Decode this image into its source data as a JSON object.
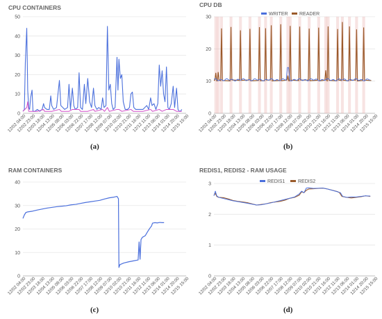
{
  "captions": [
    "(a)",
    "(b)",
    "(c)",
    "(d)"
  ],
  "x_ticks": [
    "12/02 04:00",
    "12/02 23:00",
    "12/03 18:00",
    "12/04 13:00",
    "12/05 08:00",
    "12/06 03:00",
    "12/06 22:00",
    "12/07 17:00",
    "12/08 12:00",
    "12/09 07:00",
    "12/10 02:00",
    "12/10 21:00",
    "12/11 16:00",
    "12/12 11:00",
    "12/13 06:00",
    "12/14 01:00",
    "12/14 20:00",
    "12/15 15:00"
  ],
  "colors": {
    "blue": "#4a6fdc",
    "brown": "#9a5a2a",
    "magenta": "#d04fc8",
    "pink": "#e7b0ad",
    "grid": "#e6e6e6",
    "tick": "#555555"
  },
  "chart_data": [
    {
      "id": "cpu-containers",
      "type": "line",
      "title": "CPU CONTAINERS",
      "ylim": [
        0,
        50
      ],
      "yticks": [
        0,
        10,
        20,
        30,
        40,
        50
      ],
      "series": [
        {
          "name": "",
          "color": "#4a6fdc",
          "width": 1.1,
          "points": [
            [
              0,
              1
            ],
            [
              0.3,
              2
            ],
            [
              0.5,
              26
            ],
            [
              0.8,
              44
            ],
            [
              1.0,
              12
            ],
            [
              1.2,
              3
            ],
            [
              1.4,
              2
            ],
            [
              1.6,
              8
            ],
            [
              1.9,
              12
            ],
            [
              2.1,
              1
            ],
            [
              2.5,
              1
            ],
            [
              3.0,
              2
            ],
            [
              3.5,
              1
            ],
            [
              4.0,
              2
            ],
            [
              4.3,
              5
            ],
            [
              4.5,
              3
            ],
            [
              5.0,
              2
            ],
            [
              5.5,
              2
            ],
            [
              5.8,
              9
            ],
            [
              6.0,
              4
            ],
            [
              6.4,
              2
            ],
            [
              7.0,
              3
            ],
            [
              7.3,
              10
            ],
            [
              7.6,
              17
            ],
            [
              7.9,
              4
            ],
            [
              8.3,
              3
            ],
            [
              8.7,
              2
            ],
            [
              9.3,
              3
            ],
            [
              9.6,
              15
            ],
            [
              9.9,
              2
            ],
            [
              10.3,
              13
            ],
            [
              10.6,
              4
            ],
            [
              10.9,
              2
            ],
            [
              11.4,
              3
            ],
            [
              11.7,
              21
            ],
            [
              12.0,
              3
            ],
            [
              12.4,
              2
            ],
            [
              12.8,
              15
            ],
            [
              13.1,
              5
            ],
            [
              13.5,
              18
            ],
            [
              13.9,
              6
            ],
            [
              14.3,
              3
            ],
            [
              14.7,
              13
            ],
            [
              15.0,
              4
            ],
            [
              15.4,
              2
            ],
            [
              15.8,
              3
            ],
            [
              16.3,
              2
            ],
            [
              16.6,
              8
            ],
            [
              16.9,
              3
            ],
            [
              17.3,
              4
            ],
            [
              17.6,
              45
            ],
            [
              17.9,
              12
            ],
            [
              18.2,
              15
            ],
            [
              18.5,
              5
            ],
            [
              18.8,
              2
            ],
            [
              19.2,
              3
            ],
            [
              19.6,
              29
            ],
            [
              19.8,
              12
            ],
            [
              20.0,
              28
            ],
            [
              20.3,
              18
            ],
            [
              20.6,
              20
            ],
            [
              20.9,
              6
            ],
            [
              21.3,
              2
            ],
            [
              21.8,
              2
            ],
            [
              22.2,
              3
            ],
            [
              22.5,
              10
            ],
            [
              22.8,
              11
            ],
            [
              23.1,
              3
            ],
            [
              23.5,
              2
            ],
            [
              24.0,
              2
            ],
            [
              24.5,
              2
            ],
            [
              25.0,
              2
            ],
            [
              25.4,
              3
            ],
            [
              25.8,
              4
            ],
            [
              26.2,
              2
            ],
            [
              26.6,
              8
            ],
            [
              26.9,
              4
            ],
            [
              27.3,
              5
            ],
            [
              27.7,
              2
            ],
            [
              28.1,
              5
            ],
            [
              28.4,
              25
            ],
            [
              28.7,
              14
            ],
            [
              29.0,
              22
            ],
            [
              29.3,
              10
            ],
            [
              29.6,
              6
            ],
            [
              29.9,
              24
            ],
            [
              30.2,
              3
            ],
            [
              30.5,
              2
            ],
            [
              30.9,
              5
            ],
            [
              31.3,
              14
            ],
            [
              31.6,
              3
            ],
            [
              32.0,
              13
            ],
            [
              32.3,
              2
            ],
            [
              32.6,
              1
            ],
            [
              32.8,
              1
            ],
            [
              33.1,
              2
            ]
          ]
        },
        {
          "name": "",
          "color": "#d04fc8",
          "width": 1.0,
          "points": [
            [
              0,
              1
            ],
            [
              0.8,
              3
            ],
            [
              1.0,
              6
            ],
            [
              1.2,
              1
            ],
            [
              2.0,
              1
            ],
            [
              3.0,
              1
            ],
            [
              4.3,
              2
            ],
            [
              4.5,
              1
            ],
            [
              6.0,
              1
            ],
            [
              7.6,
              2
            ],
            [
              8.0,
              1
            ],
            [
              9.6,
              1
            ],
            [
              10.3,
              2
            ],
            [
              11.7,
              2
            ],
            [
              12.0,
              1
            ],
            [
              13.5,
              1
            ],
            [
              14.7,
              2
            ],
            [
              15.0,
              1
            ],
            [
              16.6,
              2
            ],
            [
              17.0,
              1
            ],
            [
              17.6,
              3
            ],
            [
              18.0,
              1
            ],
            [
              19.6,
              2
            ],
            [
              20.0,
              2
            ],
            [
              20.6,
              1
            ],
            [
              22.5,
              2
            ],
            [
              23.0,
              1
            ],
            [
              25.0,
              1
            ],
            [
              26.6,
              2
            ],
            [
              27.0,
              1
            ],
            [
              28.4,
              2
            ],
            [
              29.0,
              1
            ],
            [
              29.9,
              2
            ],
            [
              31.3,
              2
            ],
            [
              32.0,
              1
            ],
            [
              33.1,
              1
            ]
          ]
        }
      ]
    },
    {
      "id": "cpu-db",
      "type": "line",
      "title": "CPU DB",
      "ylim": [
        0,
        30
      ],
      "yticks": [
        0,
        10,
        20,
        30
      ],
      "legend": [
        "WRITER",
        "READER"
      ],
      "base": 10.2,
      "spikes": [
        [
          0.4,
          12.5
        ],
        [
          0.9,
          12.8
        ],
        [
          1.6,
          26.5
        ],
        [
          3.6,
          26.8
        ],
        [
          5.6,
          25.6
        ],
        [
          7.6,
          26.2
        ],
        [
          9.6,
          26.9
        ],
        [
          10.9,
          26.3
        ],
        [
          12.1,
          27.3
        ],
        [
          14.1,
          27.8
        ],
        [
          15.6,
          11.6
        ],
        [
          16.1,
          27.2
        ],
        [
          18.1,
          26.8
        ],
        [
          20.1,
          26.2
        ],
        [
          22.1,
          26.7
        ],
        [
          23.6,
          13.2
        ],
        [
          24.1,
          27.1
        ],
        [
          26.1,
          26.1
        ],
        [
          27.1,
          28.2
        ],
        [
          28.6,
          27.1
        ],
        [
          30.1,
          26.1
        ],
        [
          31.6,
          26.5
        ]
      ]
    },
    {
      "id": "ram-containers",
      "type": "line",
      "title": "RAM CONTAINERS",
      "ylim": [
        0,
        40
      ],
      "yticks": [
        0,
        10,
        20,
        30,
        40
      ],
      "series": [
        {
          "name": "",
          "color": "#4a6fdc",
          "width": 1.2,
          "points": [
            [
              0,
              24.5
            ],
            [
              0.3,
              26
            ],
            [
              0.6,
              27
            ],
            [
              1.0,
              27.3
            ],
            [
              2,
              27.6
            ],
            [
              3,
              28.1
            ],
            [
              4,
              28.5
            ],
            [
              5,
              28.9
            ],
            [
              6,
              29.2
            ],
            [
              7,
              29.5
            ],
            [
              8,
              29.7
            ],
            [
              9,
              29.9
            ],
            [
              10,
              30.3
            ],
            [
              11,
              30.5
            ],
            [
              12,
              30.9
            ],
            [
              13,
              31.3
            ],
            [
              14,
              31.6
            ],
            [
              15,
              31.9
            ],
            [
              16,
              32.2
            ],
            [
              17,
              32.8
            ],
            [
              18,
              33.3
            ],
            [
              19,
              33.6
            ],
            [
              19.6,
              33.9
            ],
            [
              19.9,
              32.9
            ],
            [
              20.0,
              3.6
            ],
            [
              20.2,
              4.8
            ],
            [
              21,
              5.5
            ],
            [
              22,
              6.0
            ],
            [
              23,
              6.4
            ],
            [
              24,
              6.8
            ],
            [
              24.2,
              14.5
            ],
            [
              24.4,
              7.1
            ],
            [
              24.6,
              15.5
            ],
            [
              24.9,
              16.5
            ],
            [
              25.2,
              16.8
            ],
            [
              25.5,
              17.2
            ],
            [
              25.9,
              18.6
            ],
            [
              26.2,
              19.6
            ],
            [
              26.5,
              20.5
            ],
            [
              26.8,
              21.3
            ],
            [
              27.0,
              22.5
            ],
            [
              27.5,
              22.7
            ],
            [
              28,
              22.6
            ],
            [
              28.5,
              22.8
            ],
            [
              29,
              22.7
            ],
            [
              29.4,
              22.7
            ]
          ]
        }
      ]
    },
    {
      "id": "redis-ram",
      "type": "line",
      "title": "REDIS1, REDIS2 - RAM USAGE",
      "ylim": [
        0,
        3
      ],
      "yticks": [
        0,
        1,
        2,
        3
      ],
      "legend": [
        "REDIS1",
        "REDIS2"
      ],
      "series": [
        {
          "name": "REDIS2",
          "color": "#9a5a2a",
          "width": 1.1,
          "points": [
            [
              0,
              2.62
            ],
            [
              0.3,
              2.68
            ],
            [
              0.6,
              2.58
            ],
            [
              1,
              2.55
            ],
            [
              2,
              2.54
            ],
            [
              3,
              2.5
            ],
            [
              4,
              2.45
            ],
            [
              5,
              2.42
            ],
            [
              6,
              2.4
            ],
            [
              7,
              2.38
            ],
            [
              8,
              2.34
            ],
            [
              9,
              2.3
            ],
            [
              10,
              2.32
            ],
            [
              11,
              2.34
            ],
            [
              12,
              2.38
            ],
            [
              13,
              2.4
            ],
            [
              14,
              2.42
            ],
            [
              15,
              2.46
            ],
            [
              16,
              2.52
            ],
            [
              17,
              2.55
            ],
            [
              18,
              2.62
            ],
            [
              18.5,
              2.73
            ],
            [
              19,
              2.7
            ],
            [
              19.5,
              2.78
            ],
            [
              20,
              2.82
            ],
            [
              21,
              2.83
            ],
            [
              22,
              2.84
            ],
            [
              23,
              2.85
            ],
            [
              24,
              2.82
            ],
            [
              25,
              2.78
            ],
            [
              26,
              2.74
            ],
            [
              26.5,
              2.7
            ],
            [
              27,
              2.58
            ],
            [
              28,
              2.55
            ],
            [
              29,
              2.53
            ],
            [
              30,
              2.55
            ],
            [
              31,
              2.57
            ],
            [
              32,
              2.6
            ],
            [
              33,
              2.58
            ]
          ]
        },
        {
          "name": "REDIS1",
          "color": "#4a6fdc",
          "width": 1.0,
          "points": [
            [
              0,
              2.6
            ],
            [
              0.3,
              2.75
            ],
            [
              0.6,
              2.6
            ],
            [
              1,
              2.55
            ],
            [
              4,
              2.44
            ],
            [
              7,
              2.36
            ],
            [
              9,
              2.3
            ],
            [
              10,
              2.31
            ],
            [
              12,
              2.37
            ],
            [
              16,
              2.52
            ],
            [
              17,
              2.56
            ],
            [
              18,
              2.66
            ],
            [
              18.5,
              2.75
            ],
            [
              19,
              2.7
            ],
            [
              19.5,
              2.85
            ],
            [
              20,
              2.86
            ],
            [
              21,
              2.84
            ],
            [
              23,
              2.85
            ],
            [
              24,
              2.82
            ],
            [
              26.3,
              2.72
            ],
            [
              26.7,
              2.7
            ],
            [
              27,
              2.62
            ],
            [
              27.2,
              2.58
            ],
            [
              28,
              2.55
            ],
            [
              29,
              2.56
            ],
            [
              30,
              2.56
            ],
            [
              32,
              2.6
            ],
            [
              33,
              2.59
            ]
          ]
        }
      ]
    }
  ]
}
